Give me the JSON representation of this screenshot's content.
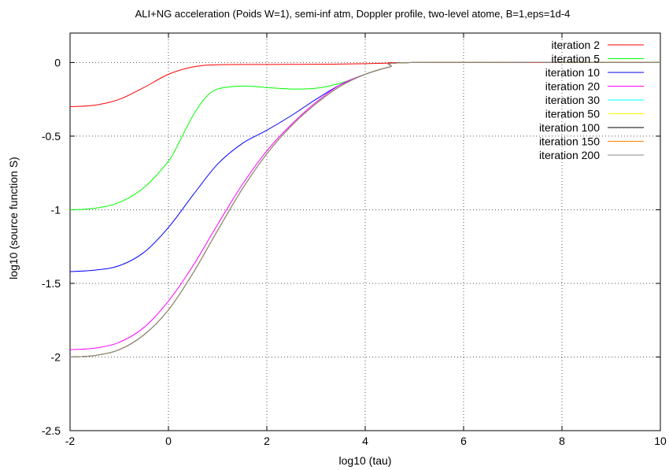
{
  "chart_data": {
    "type": "line",
    "title": "ALI+NG acceleration (Poids W=1), semi-inf atm, Doppler profile, two-level atome, B=1,eps=1d-4",
    "xlabel": "log10 (tau)",
    "ylabel": "log10 (source function S)",
    "xlim": [
      -2,
      10
    ],
    "ylim": [
      -2.5,
      0.2
    ],
    "xticks": [
      "-2",
      "0",
      "2",
      "4",
      "6",
      "8",
      "10"
    ],
    "yticks": [
      "0",
      "-0.5",
      "-1",
      "-1.5",
      "-2",
      "-2.5"
    ],
    "grid": true,
    "legend_position": "top-right",
    "series": [
      {
        "name": "iteration 2",
        "color": "#ff0000",
        "x": [
          -2,
          -1.5,
          -1,
          -0.5,
          0,
          0.5,
          1,
          2,
          3,
          4,
          4.5,
          5,
          10
        ],
        "y": [
          -0.3,
          -0.29,
          -0.25,
          -0.17,
          -0.08,
          -0.03,
          -0.015,
          -0.013,
          -0.012,
          -0.008,
          -0.004,
          0,
          0
        ]
      },
      {
        "name": "iteration 5",
        "color": "#00ff00",
        "x": [
          -2,
          -1.5,
          -1,
          -0.5,
          0,
          0.25,
          0.5,
          0.75,
          1,
          1.5,
          2,
          2.5,
          3,
          3.5,
          4,
          4.5,
          5,
          10
        ],
        "y": [
          -1.0,
          -0.99,
          -0.95,
          -0.85,
          -0.67,
          -0.52,
          -0.36,
          -0.24,
          -0.18,
          -0.16,
          -0.17,
          -0.18,
          -0.175,
          -0.14,
          -0.08,
          -0.03,
          0,
          0
        ]
      },
      {
        "name": "iteration 10",
        "color": "#0000ff",
        "x": [
          -2,
          -1.5,
          -1,
          -0.5,
          0,
          0.5,
          1,
          1.5,
          2,
          2.5,
          3,
          3.5,
          4,
          4.5,
          5,
          10
        ],
        "y": [
          -1.42,
          -1.41,
          -1.38,
          -1.29,
          -1.12,
          -0.9,
          -0.69,
          -0.55,
          -0.46,
          -0.36,
          -0.25,
          -0.15,
          -0.08,
          -0.03,
          0,
          0
        ]
      },
      {
        "name": "iteration 20",
        "color": "#ff00ff",
        "x": [
          -2,
          -1.5,
          -1,
          -0.5,
          0,
          0.5,
          1,
          1.5,
          2,
          2.5,
          3,
          3.5,
          4,
          4.5,
          5,
          10
        ],
        "y": [
          -1.95,
          -1.94,
          -1.9,
          -1.8,
          -1.62,
          -1.38,
          -1.1,
          -0.83,
          -0.6,
          -0.42,
          -0.27,
          -0.15,
          -0.08,
          -0.03,
          0,
          0
        ]
      },
      {
        "name": "iteration 30",
        "color": "#00ffff",
        "x": [
          -2,
          -1.5,
          -1,
          -0.5,
          0,
          0.5,
          1,
          1.5,
          2,
          2.5,
          3,
          3.5,
          4,
          4.5,
          5,
          10
        ],
        "y": [
          -2.0,
          -1.99,
          -1.95,
          -1.85,
          -1.68,
          -1.43,
          -1.14,
          -0.86,
          -0.62,
          -0.43,
          -0.28,
          -0.16,
          -0.08,
          -0.03,
          0,
          0
        ]
      },
      {
        "name": "iteration 50",
        "color": "#ffff00",
        "x": [
          -2,
          -1.5,
          -1,
          -0.5,
          0,
          0.5,
          1,
          1.5,
          2,
          2.5,
          3,
          3.5,
          4,
          4.5,
          5,
          10
        ],
        "y": [
          -2.0,
          -1.99,
          -1.95,
          -1.85,
          -1.68,
          -1.43,
          -1.14,
          -0.86,
          -0.62,
          -0.43,
          -0.28,
          -0.16,
          -0.08,
          -0.03,
          0,
          0
        ]
      },
      {
        "name": "iteration 100",
        "color": "#000000",
        "x": [
          -2,
          -1.5,
          -1,
          -0.5,
          0,
          0.5,
          1,
          1.5,
          2,
          2.5,
          3,
          3.5,
          4,
          4.5,
          5,
          10
        ],
        "y": [
          -2.0,
          -1.99,
          -1.95,
          -1.85,
          -1.68,
          -1.43,
          -1.14,
          -0.86,
          -0.62,
          -0.43,
          -0.28,
          -0.16,
          -0.08,
          -0.03,
          0,
          0
        ]
      },
      {
        "name": "iteration 150",
        "color": "#ff8000",
        "x": [
          -2,
          -1.5,
          -1,
          -0.5,
          0,
          0.5,
          1,
          1.5,
          2,
          2.5,
          3,
          3.5,
          4,
          4.5,
          5,
          10
        ],
        "y": [
          -2.0,
          -1.99,
          -1.95,
          -1.85,
          -1.68,
          -1.43,
          -1.14,
          -0.86,
          -0.62,
          -0.43,
          -0.28,
          -0.16,
          -0.08,
          -0.03,
          0,
          0
        ]
      },
      {
        "name": "iteration 200",
        "color": "#8a8a8a",
        "x": [
          -2,
          -1.5,
          -1,
          -0.5,
          0,
          0.5,
          1,
          1.5,
          2,
          2.5,
          3,
          3.5,
          4,
          4.5,
          5,
          10
        ],
        "y": [
          -2.0,
          -1.99,
          -1.95,
          -1.85,
          -1.68,
          -1.43,
          -1.14,
          -0.86,
          -0.62,
          -0.43,
          -0.28,
          -0.16,
          -0.08,
          -0.03,
          0,
          0
        ]
      }
    ]
  }
}
